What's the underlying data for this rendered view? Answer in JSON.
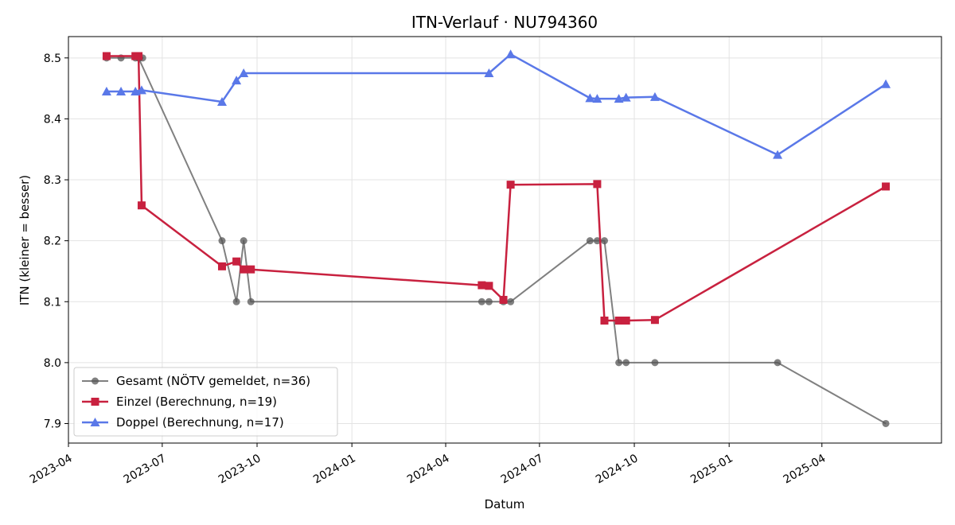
{
  "chart_data": {
    "type": "line",
    "title": "ITN-Verlauf · NU794360",
    "xlabel": "Datum",
    "ylabel": "ITN  (kleiner = besser)",
    "x_range": [
      "2023-04-01",
      "2025-07-26"
    ],
    "ylim": [
      7.868,
      8.535
    ],
    "x_ticks": [
      "2023-04",
      "2023-07",
      "2023-10",
      "2024-01",
      "2024-04",
      "2024-07",
      "2024-10",
      "2025-01",
      "2025-04"
    ],
    "y_ticks": [
      7.9,
      8.0,
      8.1,
      8.2,
      8.3,
      8.4,
      8.5
    ],
    "grid": true,
    "legend_position": "lower-left",
    "series": [
      {
        "name": "Gesamt (NÖTV gemeldet, n=36)",
        "color": "#555555",
        "marker": "circle",
        "points": [
          [
            "2023-05-08",
            8.5
          ],
          [
            "2023-05-22",
            8.5
          ],
          [
            "2023-06-05",
            8.5
          ],
          [
            "2023-06-09",
            8.5
          ],
          [
            "2023-06-12",
            8.5
          ],
          [
            "2023-06-08",
            8.5
          ],
          [
            "2023-08-28",
            8.2
          ],
          [
            "2023-09-11",
            8.1
          ],
          [
            "2023-09-18",
            8.2
          ],
          [
            "2023-09-25",
            8.1
          ],
          [
            "2024-05-06",
            8.1
          ],
          [
            "2024-05-13",
            8.1
          ],
          [
            "2024-05-27",
            8.1
          ],
          [
            "2024-06-03",
            8.1
          ],
          [
            "2024-08-19",
            8.2
          ],
          [
            "2024-08-26",
            8.2
          ],
          [
            "2024-09-02",
            8.2
          ],
          [
            "2024-09-16",
            8.0
          ],
          [
            "2024-09-23",
            8.0
          ],
          [
            "2024-10-21",
            8.0
          ],
          [
            "2025-02-17",
            8.0
          ],
          [
            "2025-06-02",
            7.9
          ]
        ]
      },
      {
        "name": "Einzel (Berechnung, n=19)",
        "color": "#c8213f",
        "marker": "square",
        "points": [
          [
            "2023-05-08",
            8.503
          ],
          [
            "2023-06-05",
            8.503
          ],
          [
            "2023-06-08",
            8.503
          ],
          [
            "2023-06-11",
            8.258
          ],
          [
            "2023-08-28",
            8.158
          ],
          [
            "2023-09-11",
            8.166
          ],
          [
            "2023-09-18",
            8.153
          ],
          [
            "2023-09-25",
            8.153
          ],
          [
            "2024-05-06",
            8.127
          ],
          [
            "2024-05-13",
            8.126
          ],
          [
            "2024-05-27",
            8.103
          ],
          [
            "2024-06-03",
            8.292
          ],
          [
            "2024-08-26",
            8.293
          ],
          [
            "2024-09-02",
            8.069
          ],
          [
            "2024-09-16",
            8.069
          ],
          [
            "2024-09-23",
            8.069
          ],
          [
            "2024-10-21",
            8.07
          ],
          [
            "2025-06-02",
            8.289
          ]
        ]
      },
      {
        "name": "Doppel (Berechnung, n=17)",
        "color": "#5a78e8",
        "marker": "triangle",
        "points": [
          [
            "2023-05-08",
            8.445
          ],
          [
            "2023-05-22",
            8.445
          ],
          [
            "2023-06-05",
            8.445
          ],
          [
            "2023-06-11",
            8.447
          ],
          [
            "2023-08-28",
            8.428
          ],
          [
            "2023-09-11",
            8.463
          ],
          [
            "2023-09-18",
            8.475
          ],
          [
            "2024-05-13",
            8.475
          ],
          [
            "2024-06-03",
            8.506
          ],
          [
            "2024-08-19",
            8.434
          ],
          [
            "2024-08-26",
            8.433
          ],
          [
            "2024-09-16",
            8.433
          ],
          [
            "2024-09-23",
            8.435
          ],
          [
            "2024-10-21",
            8.436
          ],
          [
            "2025-02-17",
            8.341
          ],
          [
            "2025-06-02",
            8.457
          ]
        ]
      }
    ]
  }
}
